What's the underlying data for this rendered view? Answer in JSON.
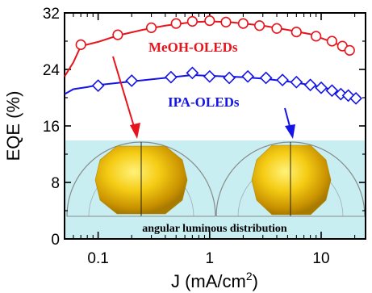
{
  "chart_data": {
    "type": "line",
    "xlabel": "J (mA/cm",
    "xlabel_sup": "2",
    "xlabel_close": ")",
    "ylabel": "EQE (%)",
    "xscale": "log",
    "xlim": [
      0.05,
      25
    ],
    "ylim": [
      0,
      32
    ],
    "x_ticks": [
      {
        "value": 0.1,
        "label": "0.1"
      },
      {
        "value": 1,
        "label": "1"
      },
      {
        "value": 10,
        "label": "10"
      }
    ],
    "y_ticks": [
      {
        "value": 0,
        "label": "0"
      },
      {
        "value": 8,
        "label": "8"
      },
      {
        "value": 16,
        "label": "16"
      },
      {
        "value": 24,
        "label": "24"
      },
      {
        "value": 32,
        "label": "32"
      }
    ],
    "series": [
      {
        "name": "MeOH-OLEDs",
        "color": "#e8141c",
        "marker": "circle",
        "curve": [
          [
            0.05,
            23.0
          ],
          [
            0.06,
            25.0
          ],
          [
            0.07,
            27.3
          ],
          [
            0.1,
            27.9
          ],
          [
            0.15,
            28.8
          ],
          [
            0.25,
            29.6
          ],
          [
            0.4,
            30.2
          ],
          [
            0.7,
            30.7
          ],
          [
            1.0,
            30.8
          ],
          [
            1.5,
            30.7
          ],
          [
            2.0,
            30.5
          ],
          [
            3.0,
            30.2
          ],
          [
            5.0,
            29.6
          ],
          [
            8.0,
            29.0
          ],
          [
            12.0,
            28.0
          ],
          [
            16.0,
            27.2
          ],
          [
            19.0,
            26.6
          ]
        ],
        "points": [
          [
            0.07,
            27.5
          ],
          [
            0.15,
            28.9
          ],
          [
            0.3,
            29.9
          ],
          [
            0.5,
            30.5
          ],
          [
            0.7,
            30.8
          ],
          [
            1.0,
            30.9
          ],
          [
            1.4,
            30.7
          ],
          [
            2.0,
            30.5
          ],
          [
            2.8,
            30.2
          ],
          [
            4.0,
            29.8
          ],
          [
            6.0,
            29.3
          ],
          [
            9.0,
            28.7
          ],
          [
            12.5,
            28.0
          ],
          [
            15.5,
            27.3
          ],
          [
            18.0,
            26.7
          ]
        ]
      },
      {
        "name": "IPA-OLEDs",
        "color": "#1414e6",
        "marker": "diamond",
        "curve": [
          [
            0.05,
            20.5
          ],
          [
            0.06,
            21.2
          ],
          [
            0.08,
            21.5
          ],
          [
            0.1,
            21.8
          ],
          [
            0.2,
            22.3
          ],
          [
            0.4,
            22.8
          ],
          [
            0.7,
            23.2
          ],
          [
            1.0,
            23.1
          ],
          [
            2.0,
            22.9
          ],
          [
            3.0,
            22.7
          ],
          [
            5.0,
            22.3
          ],
          [
            8.0,
            21.8
          ],
          [
            12.0,
            21.2
          ],
          [
            16.0,
            20.6
          ],
          [
            20.0,
            20.0
          ]
        ],
        "points": [
          [
            0.1,
            21.7
          ],
          [
            0.2,
            22.4
          ],
          [
            0.45,
            22.9
          ],
          [
            0.7,
            23.5
          ],
          [
            1.0,
            23.0
          ],
          [
            1.5,
            22.8
          ],
          [
            2.2,
            23.0
          ],
          [
            3.2,
            22.8
          ],
          [
            4.5,
            22.5
          ],
          [
            6.0,
            22.2
          ],
          [
            8.0,
            21.8
          ],
          [
            10.0,
            21.4
          ],
          [
            12.5,
            21.0
          ],
          [
            15.0,
            20.5
          ],
          [
            17.5,
            20.3
          ],
          [
            20.5,
            19.9
          ]
        ]
      }
    ],
    "series_labels": [
      "MeOH-OLEDs",
      "IPA-OLEDs"
    ],
    "inset": {
      "caption": "angular luminous distribution",
      "background": "#c8eef2"
    }
  }
}
